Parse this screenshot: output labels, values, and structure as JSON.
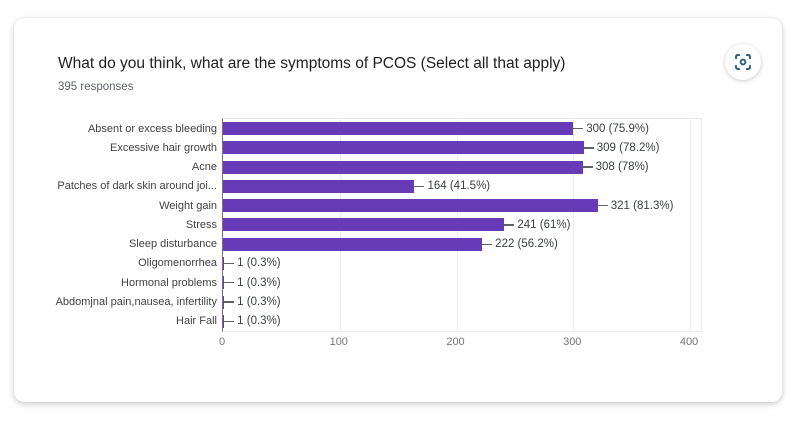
{
  "card": {
    "title": "What do you think, what are the symptoms of PCOS (Select all that apply)",
    "responses_label": "395 responses",
    "scan_button": {
      "icon": "scan-focus-icon",
      "icon_color": "#2e5e7e"
    }
  },
  "colors": {
    "bar": "#673ab7",
    "axis_line": "#757575",
    "gridline": "#ececec",
    "title_text": "#212121",
    "subtitle_text": "#5f6368"
  },
  "chart_data": {
    "type": "bar",
    "orientation": "horizontal",
    "title": "What do you think, what are the symptoms of PCOS (Select all that apply)",
    "subtitle": "395 responses",
    "categories": [
      "Absent or excess bleeding",
      "Excessive hair growth",
      "Acne",
      "Patches of dark skin around joi...",
      "Weight gain",
      "Stress",
      "Sleep disturbance",
      "Oligomenorrhea",
      "Hormonal problems",
      "Abdomjnal pain,nausea, infertility",
      "Hair Fall"
    ],
    "values": [
      300,
      309,
      308,
      164,
      321,
      241,
      222,
      1,
      1,
      1,
      1
    ],
    "value_labels": [
      "300 (75.9%)",
      "309 (78.2%)",
      "308 (78%)",
      "164 (41.5%)",
      "321 (81.3%)",
      "241 (61%)",
      "222 (56.2%)",
      "1 (0.3%)",
      "1 (0.3%)",
      "1 (0.3%)",
      "1 (0.3%)"
    ],
    "x_ticks": [
      0,
      100,
      200,
      300,
      400
    ],
    "xlim": [
      0,
      400
    ],
    "grid": true,
    "legend": "none",
    "bar_color": "#673ab7"
  }
}
